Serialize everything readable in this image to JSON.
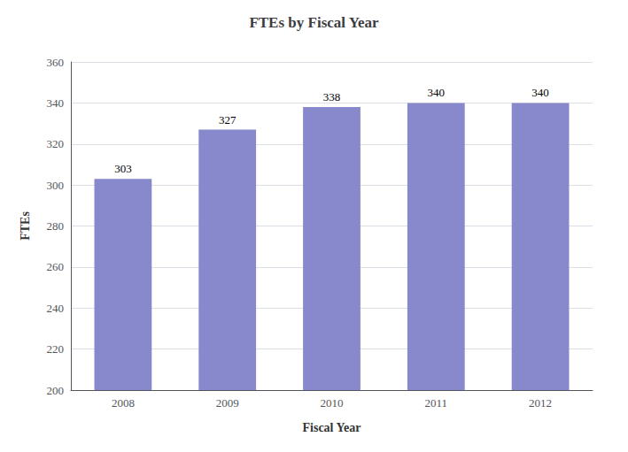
{
  "chart_data": {
    "type": "bar",
    "title": "FTEs by Fiscal Year",
    "xlabel": "Fiscal Year",
    "ylabel": "FTEs",
    "categories": [
      "2008",
      "2009",
      "2010",
      "2011",
      "2012"
    ],
    "values": [
      303,
      327,
      338,
      340,
      340
    ],
    "color": "#8888cc",
    "ylim": [
      200,
      360
    ],
    "yticks": [
      200,
      220,
      240,
      260,
      280,
      300,
      320,
      340,
      360
    ],
    "grid": true,
    "data_labels": true
  }
}
